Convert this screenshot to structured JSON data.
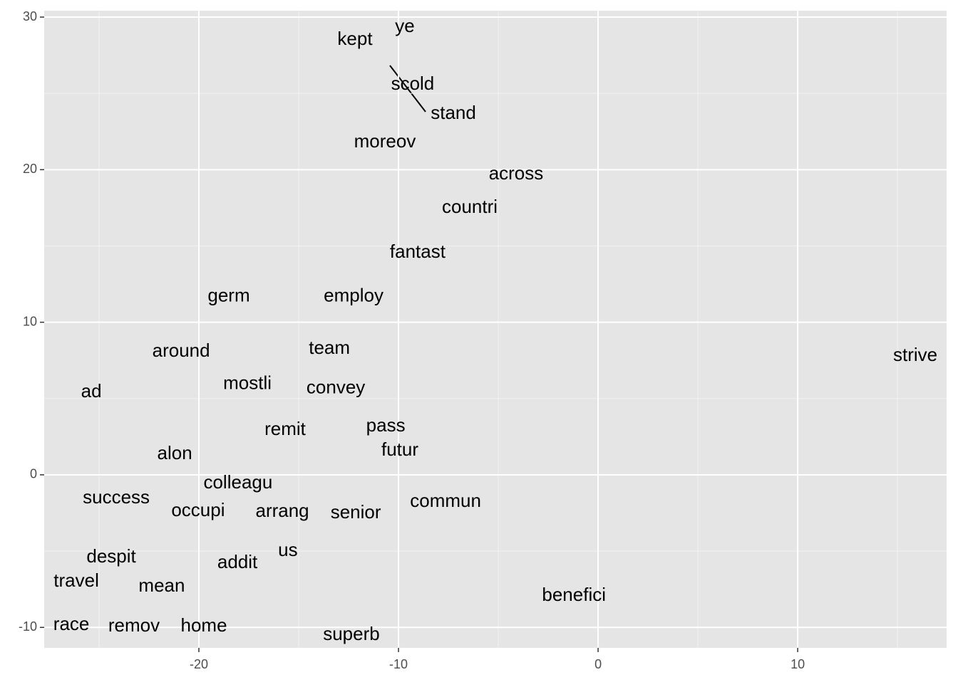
{
  "chart_data": {
    "type": "text-scatter",
    "labels": [
      "ye",
      "kept",
      "scold",
      "stand",
      "moreov",
      "across",
      "countri",
      "fantast",
      "germ",
      "employ",
      "around",
      "team",
      "strive",
      "ad",
      "mostli",
      "convey",
      "remit",
      "pass",
      "futur",
      "alon",
      "colleagu",
      "success",
      "occupi",
      "arrang",
      "senior",
      "commun",
      "us",
      "despit",
      "addit",
      "travel",
      "mean",
      "benefici",
      "race",
      "remov",
      "home",
      "superb"
    ],
    "x": [
      -9.68,
      -12.18,
      -9.29,
      -7.25,
      -10.68,
      -4.11,
      -6.43,
      -9.04,
      -18.5,
      -12.25,
      -20.89,
      -13.46,
      15.89,
      -25.39,
      -17.57,
      -13.14,
      -15.68,
      -10.64,
      -9.93,
      -21.21,
      -18.04,
      -24.14,
      -20.04,
      -15.82,
      -12.14,
      -7.64,
      -15.54,
      -24.39,
      -18.07,
      -26.14,
      -21.86,
      -1.21,
      -26.39,
      -23.25,
      -19.75,
      -12.36
    ],
    "y": [
      29.35,
      28.51,
      25.57,
      23.66,
      21.79,
      19.69,
      17.5,
      14.56,
      11.67,
      11.67,
      8.07,
      8.26,
      7.79,
      5.41,
      5.93,
      5.65,
      2.94,
      3.17,
      1.59,
      1.35,
      -0.56,
      -1.54,
      -2.38,
      -2.43,
      -2.52,
      -1.77,
      -4.99,
      -5.41,
      -5.79,
      -7.0,
      -7.33,
      -7.93,
      -9.85,
      -9.94,
      -9.94,
      -10.5
    ],
    "xlim": [
      -27.75,
      17.46
    ],
    "ylim": [
      -11.34,
      30.42
    ],
    "xticks": [
      -20,
      -10,
      0,
      10
    ],
    "yticks": [
      -10,
      0,
      10,
      20,
      30
    ],
    "grid": true
  }
}
